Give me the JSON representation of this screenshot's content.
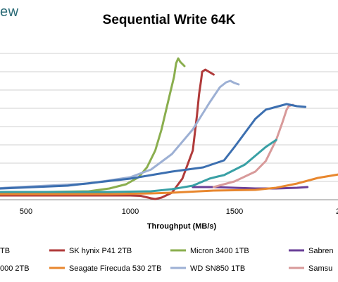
{
  "logo_fragment": "ew",
  "chart_data": {
    "type": "line",
    "title": "Sequential Write 64K",
    "xlabel": "Throughput (MB/s)",
    "ylabel": "",
    "x_ticks": [
      500,
      1000,
      1500,
      "2"
    ],
    "grid": true,
    "legend_position": "bottom",
    "series": [
      {
        "name": "SK hynix P41 2TB",
        "color": "#b03a3a",
        "x": [
          0,
          300,
          700,
          1000,
          1050,
          1100,
          1120,
          1150,
          1200,
          1250,
          1300,
          1320,
          1330,
          1340,
          1345,
          1360,
          1400
        ],
        "y": [
          0.6,
          0.6,
          0.6,
          0.6,
          0.55,
          0.2,
          0.1,
          0.3,
          1.0,
          3.0,
          7.0,
          12.0,
          15.0,
          17.0,
          18.2,
          18.5,
          17.8
        ]
      },
      {
        "name": "Micron 3400 1TB",
        "color": "#8aae4e",
        "x": [
          0,
          400,
          800,
          900,
          980,
          1040,
          1080,
          1120,
          1150,
          1170,
          1190,
          1210,
          1220,
          1230,
          1240,
          1260
        ],
        "y": [
          0.9,
          1.0,
          1.2,
          1.6,
          2.2,
          3.2,
          4.6,
          7.0,
          10.0,
          12.5,
          15.0,
          17.5,
          19.4,
          20.1,
          19.6,
          19.0
        ]
      },
      {
        "name": "Sabre",
        "color": "#6a3f97",
        "x": [
          1300,
          1400,
          1500,
          1600,
          1700,
          1800,
          1850
        ],
        "y": [
          1.8,
          1.8,
          1.7,
          1.6,
          1.6,
          1.7,
          1.8
        ]
      },
      {
        "name": "Seagate Firecuda 530 2TB",
        "color": "#e8872e",
        "x": [
          0,
          300,
          600,
          900,
          1100,
          1200,
          1400,
          1600,
          1700,
          1800,
          1900,
          2000,
          2100
        ],
        "y": [
          0.8,
          0.8,
          0.8,
          0.8,
          0.9,
          1.0,
          1.3,
          1.4,
          1.7,
          2.3,
          3.1,
          3.6,
          3.8
        ]
      },
      {
        "name": "WD SN850 1TB",
        "color": "#9db0d4",
        "x": [
          0,
          200,
          400,
          600,
          800,
          1000,
          1100,
          1200,
          1300,
          1380,
          1430,
          1460,
          1480,
          1500,
          1520
        ],
        "y": [
          0.9,
          1.2,
          1.7,
          2.0,
          2.3,
          3.2,
          4.3,
          6.5,
          10.0,
          13.8,
          16.0,
          16.7,
          16.9,
          16.6,
          16.4
        ]
      },
      {
        "name": "Samsung",
        "color": "#d89a9a",
        "x": [
          1400,
          1500,
          1550,
          1600,
          1650,
          1700,
          1730,
          1750,
          1760,
          1780
        ],
        "y": [
          1.8,
          2.6,
          3.3,
          4.0,
          5.5,
          8.5,
          11.0,
          12.8,
          13.3,
          13.5
        ]
      },
      {
        "name": "",
        "color": "#3c6fb0",
        "x": [
          0,
          300,
          700,
          1000,
          1200,
          1350,
          1450,
          1500,
          1550,
          1600,
          1650,
          1700,
          1750,
          1800,
          1840
        ],
        "y": [
          1.5,
          1.5,
          2.0,
          3.0,
          4.0,
          4.6,
          5.6,
          7.5,
          9.5,
          11.5,
          12.8,
          13.2,
          13.6,
          13.3,
          13.2
        ]
      },
      {
        "name": "",
        "color": "#39a0a5",
        "x": [
          0,
          500,
          900,
          1100,
          1200,
          1300,
          1380,
          1420,
          1450,
          1550,
          1650,
          1700
        ],
        "y": [
          1.1,
          1.1,
          1.1,
          1.2,
          1.5,
          2.0,
          3.0,
          3.3,
          3.5,
          5.0,
          7.5,
          8.5
        ]
      }
    ],
    "legend": [
      {
        "text": "TB",
        "color": "#3c6fb0"
      },
      {
        "text": "SK hynix P41 2TB",
        "color": "#b03a3a"
      },
      {
        "text": "Micron 3400 1TB",
        "color": "#8aae4e"
      },
      {
        "text": "Sabren",
        "color": "#6a3f97"
      },
      {
        "text": "000 2TB",
        "color": "#39a0a5"
      },
      {
        "text": "Seagate Firecuda 530 2TB",
        "color": "#e8872e"
      },
      {
        "text": "WD SN850 1TB",
        "color": "#9db0d4"
      },
      {
        "text": "Samsu",
        "color": "#d89a9a"
      }
    ]
  }
}
